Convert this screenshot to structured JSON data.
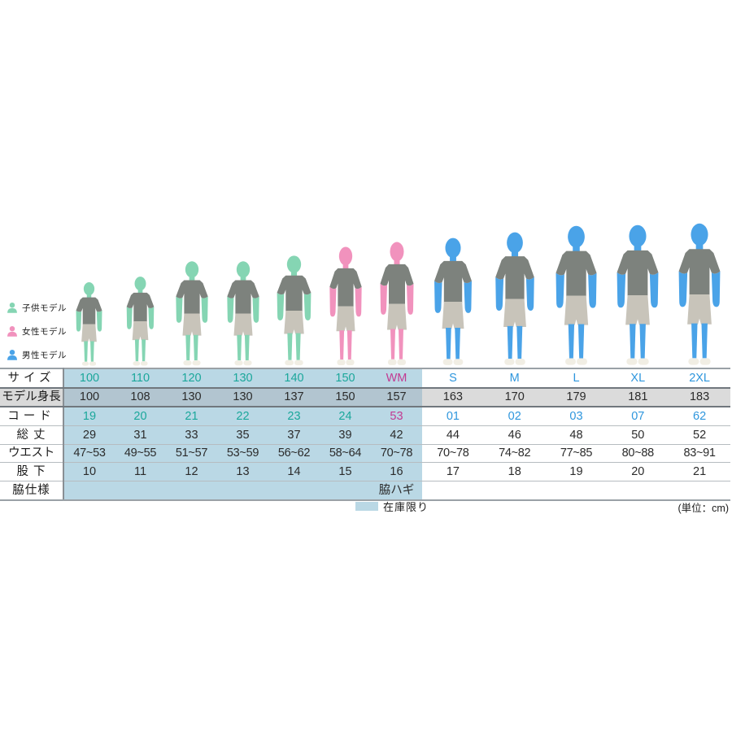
{
  "legend": {
    "items": [
      {
        "label": "子供モデル",
        "type": "child"
      },
      {
        "label": "女性モデル",
        "type": "woman"
      },
      {
        "label": "男性モデル",
        "type": "man"
      }
    ]
  },
  "colors": {
    "child": "#85d5b3",
    "woman": "#f192bd",
    "man": "#4aa3e8",
    "shirt": "#7d827d",
    "shorts": "#c8c4ba",
    "shoes": "#f1eee4",
    "teal": "#1ba79b",
    "magenta": "#c23a92",
    "blue": "#2e96dd",
    "highlight_bg": "#bad8e5"
  },
  "table": {
    "row_labels": [
      "サイズ",
      "モデル身長",
      "コード",
      "総 丈",
      "ウエスト",
      "股 下",
      "脇仕様"
    ],
    "side_spec_value": "脇ハギ",
    "columns": [
      {
        "size": "100",
        "model": "child",
        "accent": "teal",
        "model_height": "100",
        "code": "19",
        "total_length": "29",
        "waist": "47~53",
        "inseam": "10"
      },
      {
        "size": "110",
        "model": "child",
        "accent": "teal",
        "model_height": "108",
        "code": "20",
        "total_length": "31",
        "waist": "49~55",
        "inseam": "11"
      },
      {
        "size": "120",
        "model": "child",
        "accent": "teal",
        "model_height": "130",
        "code": "21",
        "total_length": "33",
        "waist": "51~57",
        "inseam": "12"
      },
      {
        "size": "130",
        "model": "child",
        "accent": "teal",
        "model_height": "130",
        "code": "22",
        "total_length": "35",
        "waist": "53~59",
        "inseam": "13"
      },
      {
        "size": "140",
        "model": "child",
        "accent": "teal",
        "model_height": "137",
        "code": "23",
        "total_length": "37",
        "waist": "56~62",
        "inseam": "14"
      },
      {
        "size": "150",
        "model": "woman",
        "accent": "teal",
        "model_height": "150",
        "code": "24",
        "total_length": "39",
        "waist": "58~64",
        "inseam": "15"
      },
      {
        "size": "WM",
        "model": "woman",
        "accent": "magenta",
        "model_height": "157",
        "code": "53",
        "total_length": "42",
        "waist": "70~78",
        "inseam": "16"
      },
      {
        "size": "S",
        "model": "man",
        "accent": "blue",
        "model_height": "163",
        "code": "01",
        "total_length": "44",
        "waist": "70~78",
        "inseam": "17"
      },
      {
        "size": "M",
        "model": "man",
        "accent": "blue",
        "model_height": "170",
        "code": "02",
        "total_length": "46",
        "waist": "74~82",
        "inseam": "18"
      },
      {
        "size": "L",
        "model": "man",
        "accent": "blue",
        "model_height": "179",
        "code": "03",
        "total_length": "48",
        "waist": "77~85",
        "inseam": "19"
      },
      {
        "size": "XL",
        "model": "man",
        "accent": "blue",
        "model_height": "181",
        "code": "07",
        "total_length": "50",
        "waist": "80~88",
        "inseam": "20"
      },
      {
        "size": "2XL",
        "model": "man",
        "accent": "blue",
        "model_height": "183",
        "code": "62",
        "total_length": "52",
        "waist": "83~91",
        "inseam": "21"
      }
    ]
  },
  "footer": {
    "stock_note": "在庫限り",
    "unit_note": "(単位：cm)"
  }
}
